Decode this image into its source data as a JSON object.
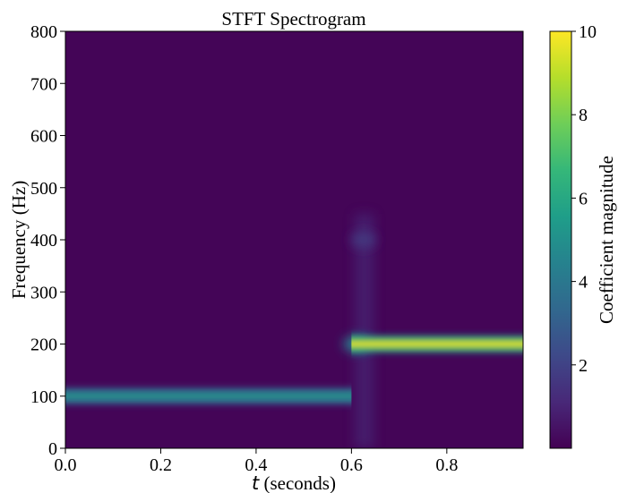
{
  "chart_data": {
    "type": "heatmap",
    "title": "STFT Spectrogram",
    "xlabel_var": "t",
    "xlabel_text": " (seconds)",
    "ylabel": "Frequency (Hz)",
    "colorbar_label": "Coefficient magnitude",
    "xlim": [
      0.0,
      0.96
    ],
    "ylim": [
      0,
      800
    ],
    "clim": [
      0,
      10
    ],
    "x_ticks": [
      0.0,
      0.2,
      0.4,
      0.6,
      0.8
    ],
    "x_tick_labels": [
      "0.0",
      "0.2",
      "0.4",
      "0.6",
      "0.8"
    ],
    "y_ticks": [
      0,
      100,
      200,
      300,
      400,
      500,
      600,
      700,
      800
    ],
    "y_tick_labels": [
      "0",
      "100",
      "200",
      "300",
      "400",
      "500",
      "600",
      "700",
      "800"
    ],
    "colorbar_ticks": [
      2,
      4,
      6,
      8,
      10
    ],
    "colorbar_tick_labels": [
      "2",
      "4",
      "6",
      "8",
      "10"
    ],
    "colormap": [
      "#440154",
      "#482878",
      "#3e4989",
      "#31688e",
      "#26828e",
      "#1f9e89",
      "#35b779",
      "#6ece58",
      "#b5de2b",
      "#fde725"
    ],
    "background_magnitude": 0.1,
    "bands": [
      {
        "t_start": 0.0,
        "t_end": 0.6,
        "frequency": 100,
        "magnitude": 5.2
      },
      {
        "t_start": 0.6,
        "t_end": 0.96,
        "frequency": 200,
        "magnitude": 10.0
      }
    ],
    "transients": [
      {
        "t": 0.625,
        "frequency": 400,
        "magnitude": 1.6
      },
      {
        "t": 0.61,
        "frequency": 200,
        "magnitude": 4.5
      }
    ]
  }
}
